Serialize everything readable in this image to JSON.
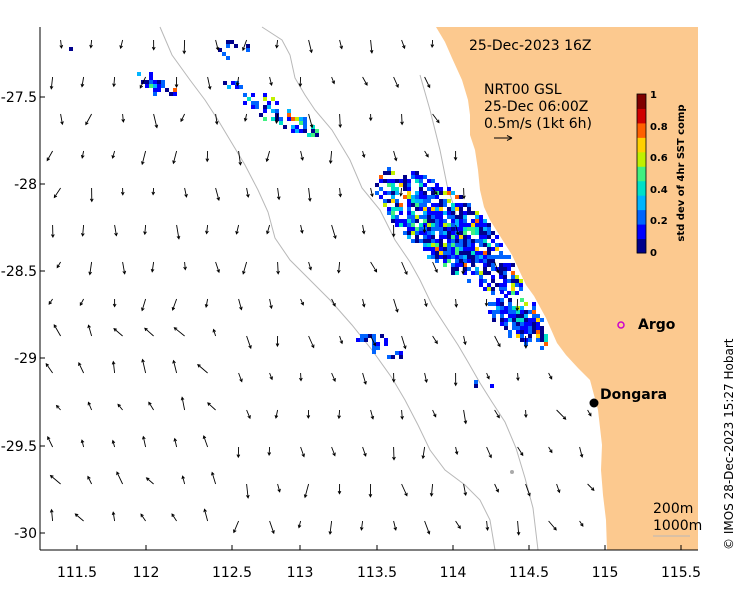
{
  "map": {
    "timestamp": "25-Dec-2023 16Z",
    "current_product": "NRT00 GSL",
    "current_time": "25-Dec 06:00Z",
    "scale_label": "0.5m/s (1kt 6h)",
    "credit": "© IMOS 28-Dec-2023 15:27 Hobart",
    "isobaths": [
      "200m",
      "1000m"
    ],
    "places": [
      {
        "name": "Argo",
        "lon": 115.05,
        "lat": -28.83,
        "color": "#cc00cc",
        "marker": "circle"
      },
      {
        "name": "Dongara",
        "lon": 114.91,
        "lat": -29.25,
        "color": "#000000",
        "marker": "dot"
      }
    ],
    "x_ticks": [
      "111.5",
      "112",
      "112.5",
      "113",
      "113.5",
      "114",
      "114.5",
      "115",
      "115.5"
    ],
    "y_ticks": [
      "-27.5",
      "-28",
      "-28.5",
      "-29",
      "-29.5",
      "-30"
    ],
    "lon_range": [
      111.32,
      115.66
    ],
    "lat_range": [
      -27.1,
      -30.1
    ],
    "colorbar": {
      "title": "std dev of 4hr SST comp",
      "ticks": [
        "1",
        "0.8",
        "0.6",
        "0.4",
        "0.2",
        "0"
      ],
      "colors": [
        "#00008b",
        "#0000ff",
        "#0064ff",
        "#00b4ff",
        "#00e0c8",
        "#40f080",
        "#c0f000",
        "#ffd000",
        "#ff6000",
        "#d00000",
        "#800000"
      ]
    },
    "land_color": "#fcc98f"
  }
}
